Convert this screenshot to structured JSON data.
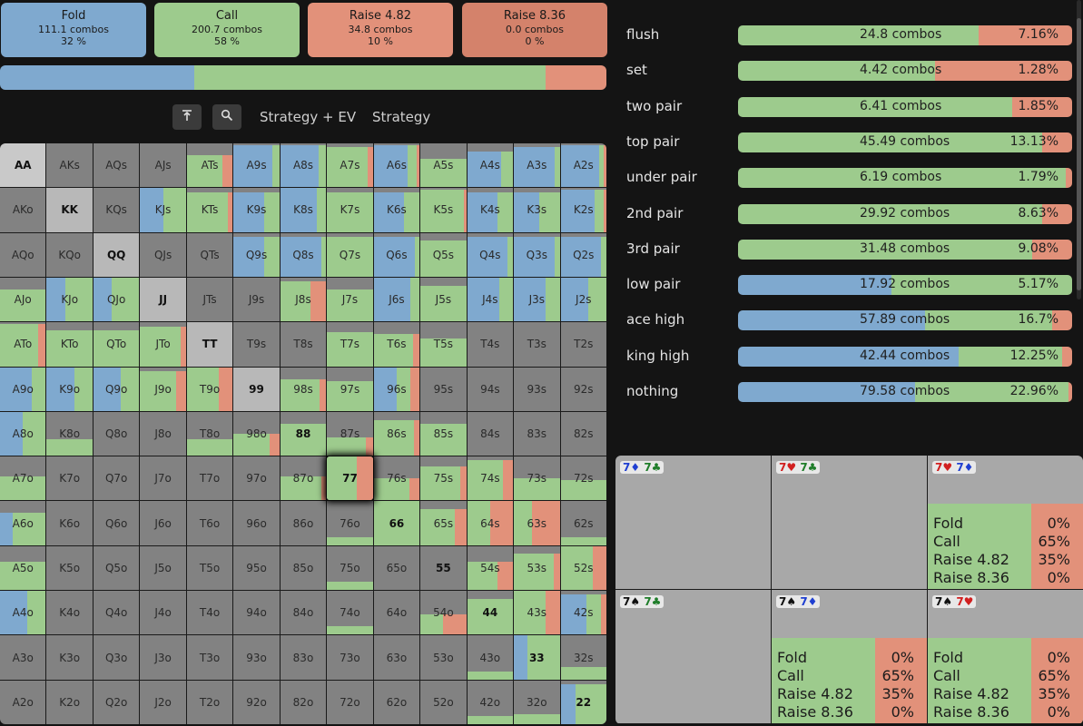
{
  "actions": [
    {
      "label": "Fold",
      "combos": "111.1 combos",
      "pct": "32 %",
      "color": "#7fa9cf"
    },
    {
      "label": "Call",
      "combos": "200.7 combos",
      "pct": "58 %",
      "color": "#9dcb8d"
    },
    {
      "label": "Raise 4.82",
      "combos": "34.8 combos",
      "pct": "10 %",
      "color": "#e2917a"
    },
    {
      "label": "Raise 8.36",
      "combos": "0.0 combos",
      "pct": "0 %",
      "color": "#d4826b"
    }
  ],
  "strategy_bar": [
    {
      "action": "Fold",
      "fraction": 0.32,
      "color": "#7fa9cf"
    },
    {
      "action": "Call",
      "fraction": 0.58,
      "color": "#9dcb8d"
    },
    {
      "action": "Raise 4.82",
      "fraction": 0.1,
      "color": "#e2917a"
    }
  ],
  "toolbar": {
    "tab_strategy_ev": "Strategy + EV",
    "tab_strategy": "Strategy",
    "btn_top_icon": "arrow-up-to-line-icon",
    "btn_search_icon": "search-icon"
  },
  "grid": {
    "colors": {
      "fold": "#7fa9cf",
      "call": "#9dcb8d",
      "raise": "#e2917a",
      "raise_big": "#d4826b",
      "empty": "#828282"
    },
    "rows": [
      [
        "AA",
        "AKs",
        "AQs",
        "AJs",
        "ATs",
        "A9s",
        "A8s",
        "A7s",
        "A6s",
        "A5s",
        "A4s",
        "A3s",
        "A2s"
      ],
      [
        "AKo",
        "KK",
        "KQs",
        "KJs",
        "KTs",
        "K9s",
        "K8s",
        "K7s",
        "K6s",
        "K5s",
        "K4s",
        "K3s",
        "K2s"
      ],
      [
        "AQo",
        "KQo",
        "QQ",
        "QJs",
        "QTs",
        "Q9s",
        "Q8s",
        "Q7s",
        "Q6s",
        "Q5s",
        "Q4s",
        "Q3s",
        "Q2s"
      ],
      [
        "AJo",
        "KJo",
        "QJo",
        "JJ",
        "JTs",
        "J9s",
        "J8s",
        "J7s",
        "J6s",
        "J5s",
        "J4s",
        "J3s",
        "J2s"
      ],
      [
        "ATo",
        "KTo",
        "QTo",
        "JTo",
        "TT",
        "T9s",
        "T8s",
        "T7s",
        "T6s",
        "T5s",
        "T4s",
        "T3s",
        "T2s"
      ],
      [
        "A9o",
        "K9o",
        "Q9o",
        "J9o",
        "T9o",
        "99",
        "98s",
        "97s",
        "96s",
        "95s",
        "94s",
        "93s",
        "92s"
      ],
      [
        "A8o",
        "K8o",
        "Q8o",
        "J8o",
        "T8o",
        "98o",
        "88",
        "87s",
        "86s",
        "85s",
        "84s",
        "83s",
        "82s"
      ],
      [
        "A7o",
        "K7o",
        "Q7o",
        "J7o",
        "T7o",
        "97o",
        "87o",
        "77",
        "76s",
        "75s",
        "74s",
        "73s",
        "72s"
      ],
      [
        "A6o",
        "K6o",
        "Q6o",
        "J6o",
        "T6o",
        "96o",
        "86o",
        "76o",
        "66",
        "65s",
        "64s",
        "63s",
        "62s"
      ],
      [
        "A5o",
        "K5o",
        "Q5o",
        "J5o",
        "T5o",
        "95o",
        "85o",
        "75o",
        "65o",
        "55",
        "54s",
        "53s",
        "52s"
      ],
      [
        "A4o",
        "K4o",
        "Q4o",
        "J4o",
        "T4o",
        "94o",
        "84o",
        "74o",
        "64o",
        "54o",
        "44",
        "43s",
        "42s"
      ],
      [
        "A3o",
        "K3o",
        "Q3o",
        "J3o",
        "T3o",
        "93o",
        "83o",
        "73o",
        "63o",
        "53o",
        "43o",
        "33",
        "32s"
      ],
      [
        "A2o",
        "K2o",
        "Q2o",
        "J2o",
        "T2o",
        "92o",
        "82o",
        "72o",
        "62o",
        "52o",
        "42o",
        "32o",
        "22"
      ]
    ],
    "selected": "77"
  },
  "categories": [
    {
      "name": "flush",
      "combos": "24.8 combos",
      "pct": "7.16%",
      "fold": 0,
      "call": 0.72,
      "raise": 0.28
    },
    {
      "name": "set",
      "combos": "4.42 combos",
      "pct": "1.28%",
      "fold": 0,
      "call": 0.59,
      "raise": 0.41
    },
    {
      "name": "two pair",
      "combos": "6.41 combos",
      "pct": "1.85%",
      "fold": 0,
      "call": 0.82,
      "raise": 0.18
    },
    {
      "name": "top pair",
      "combos": "45.49 combos",
      "pct": "13.13%",
      "fold": 0,
      "call": 0.91,
      "raise": 0.09
    },
    {
      "name": "under pair",
      "combos": "6.19 combos",
      "pct": "1.79%",
      "fold": 0,
      "call": 0.98,
      "raise": 0.02
    },
    {
      "name": "2nd pair",
      "combos": "29.92 combos",
      "pct": "8.63%",
      "fold": 0,
      "call": 0.91,
      "raise": 0.09
    },
    {
      "name": "3rd pair",
      "combos": "31.48 combos",
      "pct": "9.08%",
      "fold": 0,
      "call": 0.88,
      "raise": 0.12
    },
    {
      "name": "low pair",
      "combos": "17.92 combos",
      "pct": "5.17%",
      "fold": 0.46,
      "call": 0.54,
      "raise": 0
    },
    {
      "name": "ace high",
      "combos": "57.89 combos",
      "pct": "16.7%",
      "fold": 0.56,
      "call": 0.38,
      "raise": 0.06
    },
    {
      "name": "king high",
      "combos": "42.44 combos",
      "pct": "12.25%",
      "fold": 0.66,
      "call": 0.31,
      "raise": 0.03
    },
    {
      "name": "nothing",
      "combos": "79.58 combos",
      "pct": "22.96%",
      "fold": 0.53,
      "call": 0.46,
      "raise": 0.01
    }
  ],
  "combos": [
    {
      "cards": [
        {
          "rank": "7",
          "suit": "♦",
          "color": "#1f3fd1"
        },
        {
          "rank": "7",
          "suit": "♣",
          "color": "#1f7d2a"
        }
      ],
      "detail": null
    },
    {
      "cards": [
        {
          "rank": "7",
          "suit": "♥",
          "color": "#d11f1f"
        },
        {
          "rank": "7",
          "suit": "♣",
          "color": "#1f7d2a"
        }
      ],
      "detail": null
    },
    {
      "cards": [
        {
          "rank": "7",
          "suit": "♥",
          "color": "#d11f1f"
        },
        {
          "rank": "7",
          "suit": "♦",
          "color": "#1f3fd1"
        }
      ],
      "detail": [
        {
          "label": "Fold",
          "pct": "0%"
        },
        {
          "label": "Call",
          "pct": "65%"
        },
        {
          "label": "Raise 4.82",
          "pct": "35%"
        },
        {
          "label": "Raise 8.36",
          "pct": "0%"
        }
      ]
    },
    {
      "cards": [
        {
          "rank": "7",
          "suit": "♠",
          "color": "#111111"
        },
        {
          "rank": "7",
          "suit": "♣",
          "color": "#1f7d2a"
        }
      ],
      "detail": null
    },
    {
      "cards": [
        {
          "rank": "7",
          "suit": "♠",
          "color": "#111111"
        },
        {
          "rank": "7",
          "suit": "♦",
          "color": "#1f3fd1"
        }
      ],
      "detail": [
        {
          "label": "Fold",
          "pct": "0%"
        },
        {
          "label": "Call",
          "pct": "65%"
        },
        {
          "label": "Raise 4.82",
          "pct": "35%"
        },
        {
          "label": "Raise 8.36",
          "pct": "0%"
        }
      ]
    },
    {
      "cards": [
        {
          "rank": "7",
          "suit": "♠",
          "color": "#111111"
        },
        {
          "rank": "7",
          "suit": "♥",
          "color": "#d11f1f"
        }
      ],
      "detail": [
        {
          "label": "Fold",
          "pct": "0%"
        },
        {
          "label": "Call",
          "pct": "65%"
        },
        {
          "label": "Raise 4.82",
          "pct": "35%"
        },
        {
          "label": "Raise 8.36",
          "pct": "0%"
        }
      ]
    }
  ]
}
